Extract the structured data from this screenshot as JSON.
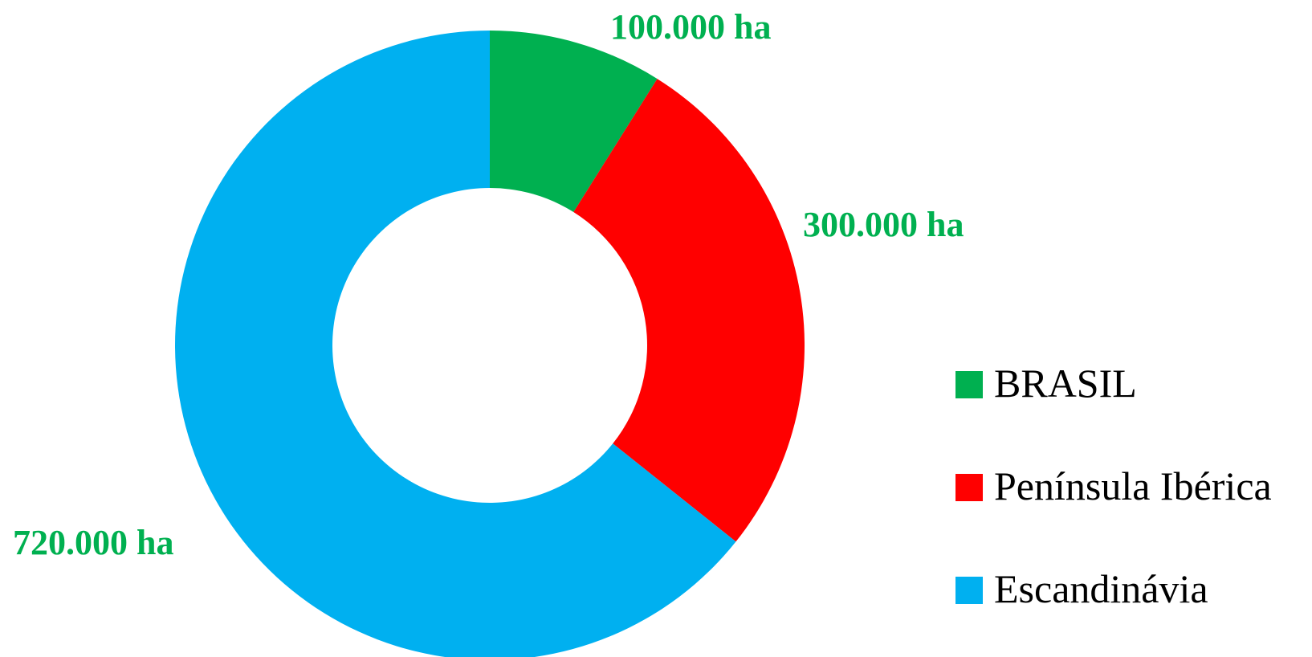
{
  "chart_data": {
    "type": "donut",
    "title": "",
    "categories": [
      "BRASIL",
      "Península Ibérica",
      "Escandinávia"
    ],
    "values": [
      100000,
      300000,
      720000
    ],
    "unit": "ha",
    "data_labels": [
      "100.000 ha",
      "300.000 ha",
      "720.000 ha"
    ],
    "colors": [
      "#00B050",
      "#FF0000",
      "#00B0F0"
    ],
    "label_color": "#00B050",
    "legend": {
      "position": "right",
      "entries": [
        "BRASIL",
        "Península Ibérica",
        "Escandinávia"
      ]
    },
    "start_angle_deg": 0,
    "direction": "clockwise",
    "hole_ratio": 0.5
  }
}
